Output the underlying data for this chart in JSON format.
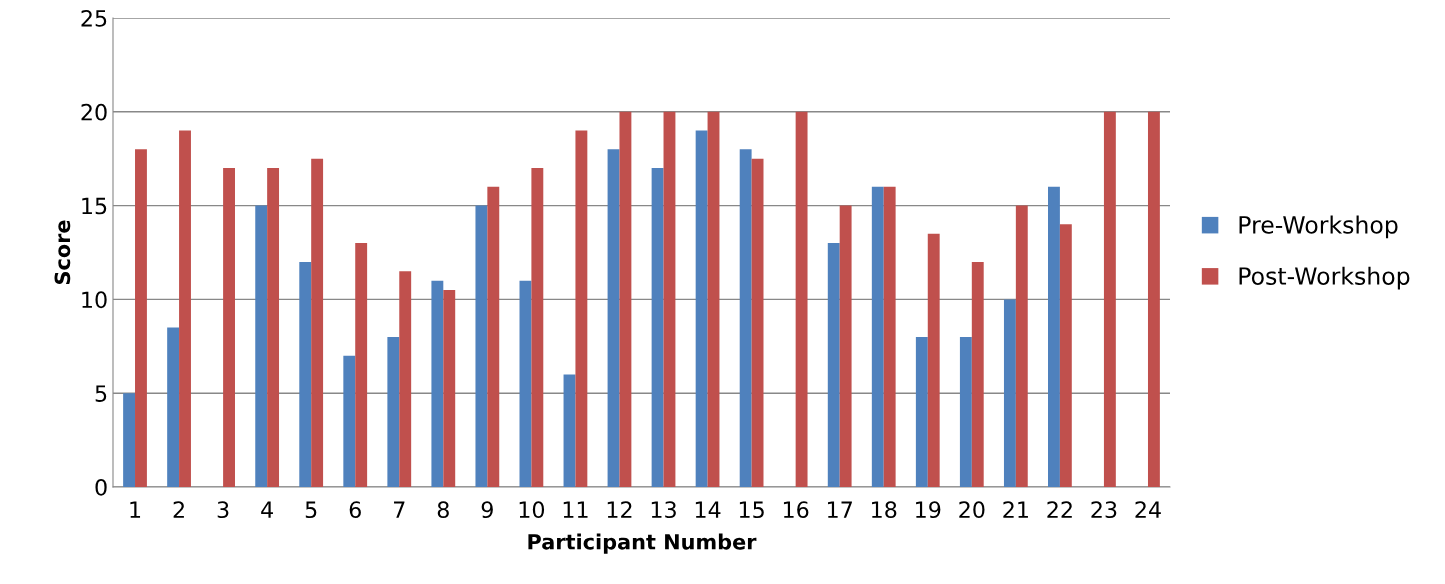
{
  "chart_data": {
    "type": "bar",
    "xlabel": "Participant Number",
    "ylabel": "Score",
    "categories": [
      "1",
      "2",
      "3",
      "4",
      "5",
      "6",
      "7",
      "8",
      "9",
      "10",
      "11",
      "12",
      "13",
      "14",
      "15",
      "16",
      "17",
      "18",
      "19",
      "20",
      "21",
      "22",
      "23",
      "24"
    ],
    "series": [
      {
        "name": "Pre-Workshop",
        "color": "#4f81bd",
        "values": [
          5,
          8.5,
          null,
          15,
          12,
          7,
          8,
          11,
          15,
          11,
          6,
          18,
          17,
          19,
          18,
          null,
          13,
          16,
          8,
          8,
          10,
          16,
          null,
          null
        ]
      },
      {
        "name": "Post-Workshop",
        "color": "#c0504d",
        "values": [
          18,
          19,
          17,
          17,
          17.5,
          13,
          11.5,
          10.5,
          16,
          17,
          19,
          20,
          20,
          20,
          17.5,
          20,
          15,
          16,
          13.5,
          12,
          15,
          14,
          20,
          20
        ]
      }
    ],
    "ylim": [
      0,
      25
    ],
    "yticks": [
      0,
      5,
      10,
      15,
      20,
      25
    ],
    "grid": "y",
    "legend": "right"
  }
}
